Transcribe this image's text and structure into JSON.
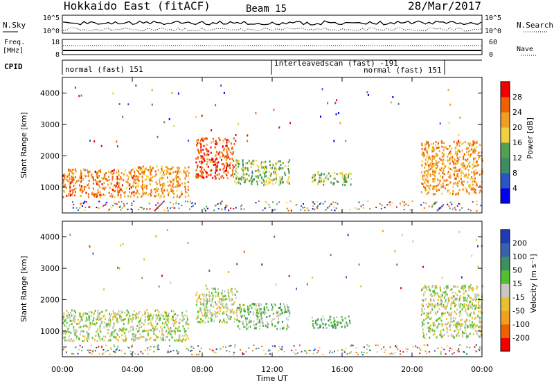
{
  "header": {
    "station": "Hokkaido East (fitACF)",
    "beam": "Beam 15",
    "date": "28/Mar/2017"
  },
  "sky_panel": {
    "left_label": "N.Sky",
    "right_label": "N.Search",
    "left_ticks": [
      "10^5",
      "10^0"
    ],
    "right_ticks": [
      "10^5",
      "10^0"
    ]
  },
  "freq_panel": {
    "left_label_1": "Freq.",
    "left_label_2": "[MHz]",
    "right_label": "Nave",
    "left_ticks": [
      "18",
      "8"
    ],
    "right_ticks": [
      "60",
      "0"
    ]
  },
  "cpid_panel": {
    "label": "CPID",
    "modes": [
      {
        "text": "normal (fast) 151"
      },
      {
        "text": "interleavedscan (fast) -191"
      },
      {
        "text": "normal (fast) 151"
      }
    ]
  },
  "x_axis": {
    "label": "Time UT",
    "ticks": [
      "00:00",
      "04:00",
      "08:00",
      "12:00",
      "16:00",
      "20:00",
      "00:00"
    ]
  },
  "power_panel": {
    "ylabel": "Slant Range [km]",
    "yticks": [
      "1000",
      "2000",
      "3000",
      "4000"
    ],
    "colorbar_label": "Power [dB]",
    "colorbar_ticks": [
      "4",
      "8",
      "12",
      "16",
      "20",
      "24",
      "28"
    ],
    "colors": [
      "#0000f0",
      "#2a55c8",
      "#3c8c64",
      "#50a050",
      "#f0d040",
      "#f0a020",
      "#f06000",
      "#f00000"
    ]
  },
  "velocity_panel": {
    "ylabel": "Slant Range [km]",
    "yticks": [
      "1000",
      "2000",
      "3000",
      "4000"
    ],
    "colorbar_label": "Velocity [m s⁻¹]",
    "colorbar_ticks": [
      "-200",
      "-100",
      "-50",
      "-15",
      "15",
      "50",
      "100",
      "200"
    ],
    "colors": [
      "#f00000",
      "#f06000",
      "#f0a020",
      "#e8c030",
      "#c8c8c0",
      "#50c030",
      "#3c9060",
      "#3c60b0",
      "#1e3cb4"
    ]
  },
  "chart_data": [
    {
      "type": "heatmap",
      "title": "Power",
      "x_range_hours": [
        0,
        24
      ],
      "y_range_km": [
        180,
        4500
      ],
      "value_range": [
        0,
        30
      ],
      "echo_regions": [
        {
          "t_start": 0.0,
          "t_end": 4.2,
          "range_low_km": 700,
          "range_high_km": 1600,
          "power_db": 24
        },
        {
          "t_start": 4.2,
          "t_end": 7.2,
          "range_low_km": 700,
          "range_high_km": 1700,
          "power_db": 22
        },
        {
          "t_start": 7.6,
          "t_end": 9.8,
          "range_low_km": 1300,
          "range_high_km": 2600,
          "power_db": 27
        },
        {
          "t_start": 9.8,
          "t_end": 13.0,
          "range_low_km": 1100,
          "range_high_km": 1900,
          "power_db": 14
        },
        {
          "t_start": 14.2,
          "t_end": 16.5,
          "range_low_km": 1100,
          "range_high_km": 1500,
          "power_db": 14
        },
        {
          "t_start": 20.5,
          "t_end": 24.0,
          "range_low_km": 800,
          "range_high_km": 2500,
          "power_db": 22
        }
      ]
    },
    {
      "type": "heatmap",
      "title": "Velocity",
      "x_range_hours": [
        0,
        24
      ],
      "y_range_km": [
        180,
        4500
      ],
      "value_range": [
        -200,
        200
      ],
      "echo_regions": [
        {
          "t_start": 0.0,
          "t_end": 7.2,
          "range_low_km": 700,
          "range_high_km": 1700,
          "velocity_ms": 0
        },
        {
          "t_start": 7.6,
          "t_end": 10.0,
          "range_low_km": 1300,
          "range_high_km": 2400,
          "velocity_ms": 0
        },
        {
          "t_start": 10.0,
          "t_end": 13.0,
          "range_low_km": 1100,
          "range_high_km": 1900,
          "velocity_ms": 40
        },
        {
          "t_start": 14.2,
          "t_end": 16.5,
          "range_low_km": 1100,
          "range_high_km": 1500,
          "velocity_ms": 60
        },
        {
          "t_start": 20.5,
          "t_end": 24.0,
          "range_low_km": 800,
          "range_high_km": 2500,
          "velocity_ms": 0
        }
      ]
    }
  ]
}
